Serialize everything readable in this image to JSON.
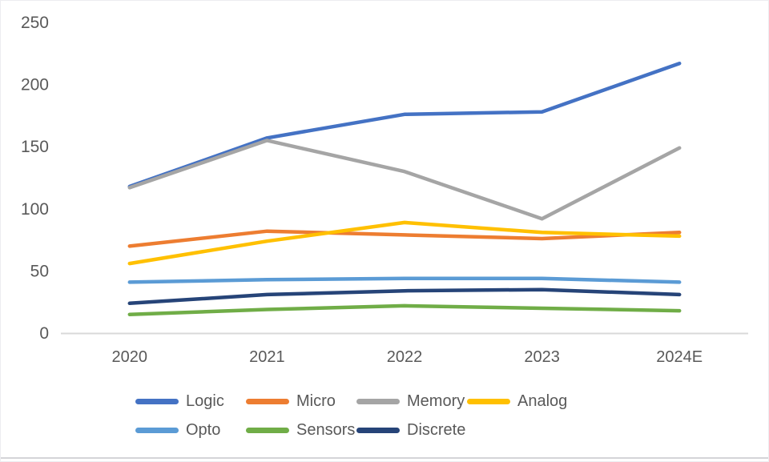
{
  "chart_data": {
    "type": "line",
    "title": "",
    "categories": [
      "2020",
      "2021",
      "2022",
      "2023",
      "2024E"
    ],
    "series": [
      {
        "name": "Logic",
        "color": "#4472C4",
        "values": [
          118,
          157,
          176,
          178,
          217
        ]
      },
      {
        "name": "Micro",
        "color": "#ED7D31",
        "values": [
          70,
          82,
          79,
          76,
          81
        ]
      },
      {
        "name": "Memory",
        "color": "#A5A5A5",
        "values": [
          117,
          155,
          130,
          92,
          149
        ]
      },
      {
        "name": "Analog",
        "color": "#FFC000",
        "values": [
          56,
          74,
          89,
          81,
          78
        ]
      },
      {
        "name": "Opto",
        "color": "#5B9BD5",
        "values": [
          41,
          43,
          44,
          44,
          41
        ]
      },
      {
        "name": "Sensors",
        "color": "#70AD47",
        "values": [
          15,
          19,
          22,
          20,
          18
        ]
      },
      {
        "name": "Discrete",
        "color": "#264478",
        "values": [
          24,
          31,
          34,
          35,
          31
        ]
      }
    ],
    "y_axis": {
      "min": 0,
      "max": 250,
      "ticks": [
        0,
        50,
        100,
        150,
        200,
        250
      ]
    },
    "x_axis": {
      "labels": [
        "2020",
        "2021",
        "2022",
        "2023",
        "2024E"
      ]
    },
    "grid": false,
    "legend_position": "bottom",
    "legend_rows": [
      [
        "Logic",
        "Micro",
        "Memory",
        "Analog"
      ],
      [
        "Opto",
        "Sensors",
        "Discrete"
      ]
    ],
    "axis_text_color": "#595959",
    "axis_line_color": "#D9D9D9"
  }
}
